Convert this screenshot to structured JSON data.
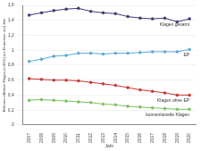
{
  "chart_data": {
    "type": "line",
    "x_label": "Jahr",
    "y_label": "Millionen effektive Klagen (in Mrd.) pro Einwohner und Jahr",
    "categories": [
      "2007",
      "2008",
      "2009",
      "2010",
      "2011",
      "2012",
      "2013",
      "2014",
      "2015",
      "2016",
      "2017",
      "2018",
      "2019",
      "2020"
    ],
    "series": [
      {
        "name": "Klagen gesamt",
        "color": "#3b3a72",
        "marker": "circle",
        "values": [
          1.47,
          1.5,
          1.53,
          1.55,
          1.56,
          1.52,
          1.5,
          1.49,
          1.45,
          1.43,
          1.42,
          1.43,
          1.38,
          1.42
        ]
      },
      {
        "name": "EP",
        "color": "#5ba8d6",
        "marker": "circle",
        "values": [
          0.85,
          0.88,
          0.92,
          0.93,
          0.96,
          0.96,
          0.95,
          0.96,
          0.96,
          0.97,
          0.98,
          0.98,
          0.98,
          1.01
        ]
      },
      {
        "name": "Klagen ohne EP",
        "color": "#c8352e",
        "marker": "circle",
        "values": [
          0.62,
          0.61,
          0.6,
          0.6,
          0.59,
          0.57,
          0.55,
          0.53,
          0.5,
          0.47,
          0.45,
          0.43,
          0.4,
          0.4
        ]
      },
      {
        "name": "konventionelle Klagen",
        "color": "#7cbf5e",
        "marker": "circle",
        "values": [
          0.33,
          0.34,
          0.33,
          0.32,
          0.31,
          0.3,
          0.28,
          0.27,
          0.25,
          0.24,
          0.23,
          0.22,
          0.21,
          0.21
        ]
      }
    ],
    "ylim": [
      0,
      1.6
    ],
    "yticks": [
      0,
      {
        "value": 0.2,
        "label": "0,2"
      },
      {
        "value": 0.4,
        "label": "0,4"
      },
      {
        "value": 0.6,
        "label": "0,6"
      },
      {
        "value": 0.8,
        "label": "0,8"
      },
      1,
      {
        "value": 1.2,
        "label": "1,2"
      },
      {
        "value": 1.4,
        "label": "1,4"
      },
      {
        "value": 1.6,
        "label": "1,6"
      }
    ],
    "grid": true
  }
}
